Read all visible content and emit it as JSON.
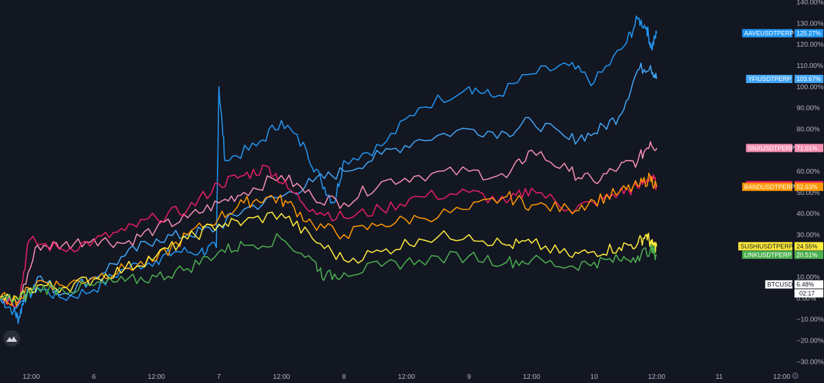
{
  "app": {
    "logo_icon": "tradingview-logo-icon",
    "settings_icon": "gear-icon"
  },
  "chart_data": {
    "type": "line",
    "background": "#131722",
    "ylim": [
      -33,
      141
    ],
    "y_ticks": [
      -30,
      -20,
      -10,
      0,
      10,
      20,
      30,
      40,
      50,
      60,
      70,
      80,
      90,
      100,
      110,
      120,
      130,
      140
    ],
    "y_tick_labels": [
      "−30.00%",
      "−20.00%",
      "−10.00%",
      "0.00%",
      "10.00%",
      "20.00%",
      "30.00%",
      "40.00%",
      "50.00%",
      "60.00%",
      "70.00%",
      "80.00%",
      "90.00%",
      "100.00%",
      "110.00%",
      "120.00%",
      "130.00%",
      "140.00%"
    ],
    "x_ticks": [
      0.5,
      1,
      1.5,
      2,
      2.5,
      3,
      3.5,
      4,
      4.5,
      5,
      5.5,
      6,
      6.5
    ],
    "x_tick_labels": [
      "12:00",
      "6",
      "12:00",
      "7",
      "12:00",
      "8",
      "12:00",
      "9",
      "12:00",
      "10",
      "12:00",
      "11",
      "12:00"
    ],
    "xlim": [
      0.25,
      6.58
    ],
    "x_end": 5.5,
    "series": [
      {
        "name": "AAVEUSDTPERP",
        "last_label": "125.27%",
        "last": 125.27,
        "color": "#2196f3",
        "x": [
          0.25,
          0.36,
          0.4,
          0.44,
          0.55,
          0.75,
          1.0,
          1.25,
          1.5,
          1.65,
          1.85,
          1.98,
          2.0,
          2.05,
          2.3,
          2.5,
          2.7,
          2.82,
          2.92,
          3.0,
          3.3,
          3.6,
          4.0,
          4.2,
          4.5,
          4.8,
          5.0,
          5.25,
          5.35,
          5.42,
          5.46,
          5.5
        ],
        "values": [
          0,
          -6,
          -10,
          0,
          5,
          0,
          4,
          14,
          18,
          22,
          22,
          24,
          100,
          65,
          72,
          84,
          70,
          55,
          45,
          65,
          72,
          90,
          100,
          95,
          106,
          110,
          102,
          120,
          132,
          128,
          118,
          125.27
        ]
      },
      {
        "name": "YFIUSDTPERP",
        "last_label": "103.67%",
        "last": 103.67,
        "color": "#42a5f5",
        "x": [
          0.25,
          0.4,
          0.55,
          0.75,
          1.0,
          1.25,
          1.5,
          1.75,
          1.98,
          2.2,
          2.5,
          2.75,
          3.0,
          3.3,
          3.6,
          4.0,
          4.3,
          4.5,
          4.8,
          5.0,
          5.2,
          5.35,
          5.45,
          5.5
        ],
        "values": [
          0,
          -3,
          10,
          2,
          10,
          20,
          28,
          30,
          33,
          42,
          48,
          55,
          60,
          68,
          75,
          80,
          78,
          84,
          75,
          78,
          86,
          108,
          110,
          103.67
        ]
      },
      {
        "name": "SNXUSDTPERP",
        "last_label": "71.01%",
        "last": 71.01,
        "color": "#f48fb1",
        "x": [
          0.25,
          0.4,
          0.55,
          0.75,
          1.0,
          1.25,
          1.5,
          1.75,
          2.0,
          2.2,
          2.5,
          2.75,
          3.0,
          3.3,
          3.6,
          4.0,
          4.3,
          4.5,
          4.8,
          5.0,
          5.2,
          5.35,
          5.45,
          5.5
        ],
        "values": [
          0,
          -2,
          25,
          25,
          28,
          26,
          33,
          38,
          45,
          50,
          58,
          48,
          45,
          55,
          58,
          60,
          57,
          70,
          60,
          55,
          62,
          65,
          74,
          71.01
        ]
      },
      {
        "name": "UNIUSDTPERP",
        "last_label": "53.46%",
        "last": 53.46,
        "color": "#e91e63",
        "x": [
          0.25,
          0.4,
          0.48,
          0.75,
          1.0,
          1.25,
          1.5,
          1.75,
          2.0,
          2.2,
          2.4,
          2.55,
          2.75,
          3.0,
          3.3,
          3.6,
          4.0,
          4.3,
          4.5,
          4.8,
          5.0,
          5.2,
          5.35,
          5.45,
          5.5
        ],
        "values": [
          0,
          -2,
          27,
          23,
          27,
          32,
          38,
          42,
          54,
          58,
          62,
          52,
          42,
          38,
          42,
          48,
          50,
          45,
          52,
          42,
          45,
          50,
          52,
          58,
          53.46
        ]
      },
      {
        "name": "BANDUSDTPERP",
        "last_label": "52.63%",
        "last": 52.63,
        "color": "#ff9800",
        "x": [
          0.25,
          0.4,
          0.55,
          0.75,
          1.0,
          1.25,
          1.5,
          1.75,
          2.0,
          2.2,
          2.4,
          2.55,
          2.75,
          3.0,
          3.3,
          3.6,
          4.0,
          4.3,
          4.5,
          4.8,
          5.0,
          5.2,
          5.35,
          5.45,
          5.5
        ],
        "values": [
          0,
          -1,
          8,
          6,
          10,
          14,
          18,
          30,
          38,
          45,
          48,
          45,
          35,
          30,
          35,
          38,
          42,
          48,
          44,
          42,
          46,
          50,
          53,
          57,
          52.63
        ]
      },
      {
        "name": "SUSHIUSDTPERP",
        "last_label": "24.55%",
        "last": 24.55,
        "color": "#ffeb3b",
        "x": [
          0.25,
          0.4,
          0.55,
          0.75,
          1.0,
          1.25,
          1.5,
          1.75,
          2.0,
          2.2,
          2.5,
          2.75,
          3.0,
          3.3,
          3.6,
          4.0,
          4.3,
          4.5,
          4.8,
          5.0,
          5.2,
          5.35,
          5.42,
          5.46,
          5.5
        ],
        "values": [
          0,
          -1,
          6,
          5,
          9,
          14,
          20,
          28,
          35,
          36,
          40,
          28,
          18,
          22,
          28,
          30,
          25,
          26,
          20,
          22,
          24,
          26,
          30,
          25,
          24.55
        ]
      },
      {
        "name": "LINKUSDTPERP",
        "last_label": "20.51%",
        "last": 20.51,
        "color": "#4caf50",
        "x": [
          0.25,
          0.4,
          0.55,
          0.75,
          1.0,
          1.25,
          1.5,
          1.75,
          2.0,
          2.2,
          2.5,
          2.75,
          2.85,
          3.0,
          3.3,
          3.6,
          4.0,
          4.3,
          4.5,
          4.8,
          5.0,
          5.2,
          5.35,
          5.45,
          5.5
        ],
        "values": [
          0,
          -1,
          5,
          4,
          6,
          8,
          10,
          14,
          22,
          25,
          28,
          18,
          10,
          12,
          15,
          18,
          20,
          17,
          18,
          15,
          17,
          18,
          20,
          23,
          20.51
        ]
      },
      {
        "name": "BTCUSD",
        "last_label": "6.48%",
        "last": 6.48,
        "color": "#ffffff",
        "x": [],
        "values": []
      }
    ],
    "countdown_label": "02:17"
  }
}
